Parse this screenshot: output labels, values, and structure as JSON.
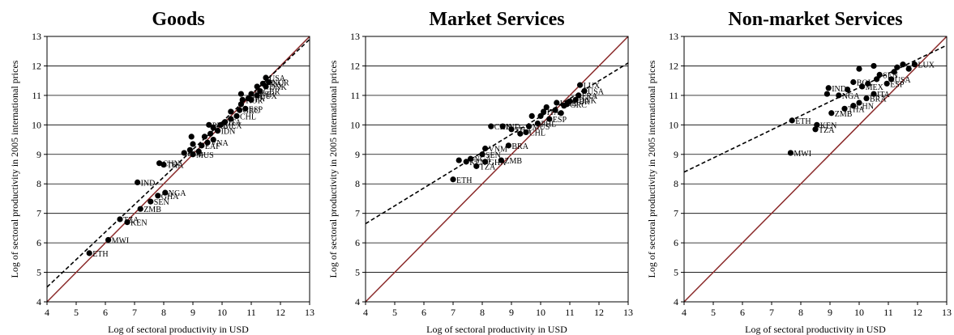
{
  "chart_data": [
    {
      "type": "scatter",
      "title": "Goods",
      "xlabel": "Log of sectoral productivity in USD",
      "ylabel": "Log of sectoral productivity in 2005 international prices",
      "xlim": [
        4,
        13
      ],
      "ylim": [
        4,
        13
      ],
      "xticks": [
        "4",
        "5",
        "6",
        "7",
        "8",
        "9",
        "10",
        "11",
        "12",
        "13"
      ],
      "yticks": [
        "4",
        "5",
        "6",
        "7",
        "8",
        "9",
        "10",
        "11",
        "12",
        "13"
      ],
      "grid": "horizontal",
      "fit_line": {
        "x": [
          4,
          13
        ],
        "y": [
          4.5,
          12.9
        ]
      },
      "identity_line": {
        "x": [
          4,
          13
        ],
        "y": [
          4,
          13
        ]
      },
      "points": [
        {
          "x": 5.45,
          "y": 5.65,
          "label": "ETH"
        },
        {
          "x": 6.1,
          "y": 6.1,
          "label": "MWI"
        },
        {
          "x": 6.75,
          "y": 6.7,
          "label": "KEN"
        },
        {
          "x": 6.5,
          "y": 6.8,
          "label": "TZA"
        },
        {
          "x": 7.2,
          "y": 7.15,
          "label": "ZMB"
        },
        {
          "x": 7.55,
          "y": 7.4,
          "label": "SEN"
        },
        {
          "x": 7.8,
          "y": 7.6,
          "label": "GHA"
        },
        {
          "x": 8.05,
          "y": 7.7,
          "label": "NGA"
        },
        {
          "x": 7.1,
          "y": 8.05,
          "label": "IND"
        },
        {
          "x": 7.85,
          "y": 8.7,
          "label": "CHN"
        },
        {
          "x": 8.0,
          "y": 8.65,
          "label": "THA"
        },
        {
          "x": 9.0,
          "y": 9.0,
          "label": "MUS"
        },
        {
          "x": 8.7,
          "y": 9.05,
          "label": "BOL"
        },
        {
          "x": 9.2,
          "y": 9.1,
          "label": ""
        },
        {
          "x": 8.9,
          "y": 9.15,
          "label": ""
        },
        {
          "x": 9.3,
          "y": 9.3,
          "label": "EAF"
        },
        {
          "x": 9.5,
          "y": 9.4,
          "label": "VNA"
        },
        {
          "x": 9.0,
          "y": 9.35,
          "label": ""
        },
        {
          "x": 9.7,
          "y": 9.5,
          "label": ""
        },
        {
          "x": 8.95,
          "y": 9.6,
          "label": ""
        },
        {
          "x": 9.4,
          "y": 9.6,
          "label": ""
        },
        {
          "x": 9.6,
          "y": 9.7,
          "label": ""
        },
        {
          "x": 9.85,
          "y": 9.8,
          "label": "IDN"
        },
        {
          "x": 9.7,
          "y": 9.9,
          "label": ""
        },
        {
          "x": 9.55,
          "y": 10.0,
          "label": "PHL"
        },
        {
          "x": 9.95,
          "y": 10.0,
          "label": "MEX"
        },
        {
          "x": 10.1,
          "y": 10.1,
          "label": "ITA"
        },
        {
          "x": 10.3,
          "y": 10.2,
          "label": ""
        },
        {
          "x": 10.5,
          "y": 10.3,
          "label": "CHL"
        },
        {
          "x": 10.3,
          "y": 10.45,
          "label": ""
        },
        {
          "x": 10.6,
          "y": 10.5,
          "label": "GRC"
        },
        {
          "x": 10.8,
          "y": 10.55,
          "label": "ESP"
        },
        {
          "x": 10.65,
          "y": 10.7,
          "label": ""
        },
        {
          "x": 10.7,
          "y": 10.85,
          "label": "KOR"
        },
        {
          "x": 10.9,
          "y": 10.9,
          "label": "JPN"
        },
        {
          "x": 11.0,
          "y": 10.85,
          "label": ""
        },
        {
          "x": 10.65,
          "y": 11.05,
          "label": ""
        },
        {
          "x": 11.0,
          "y": 11.05,
          "label": "SWE"
        },
        {
          "x": 11.2,
          "y": 11.0,
          "label": "LUX"
        },
        {
          "x": 11.3,
          "y": 11.15,
          "label": "GBR"
        },
        {
          "x": 11.5,
          "y": 11.3,
          "label": "DNK"
        },
        {
          "x": 11.2,
          "y": 11.3,
          "label": ""
        },
        {
          "x": 11.4,
          "y": 11.4,
          "label": "FRA"
        },
        {
          "x": 11.6,
          "y": 11.45,
          "label": "NOR"
        },
        {
          "x": 11.5,
          "y": 11.6,
          "label": "USA"
        }
      ]
    },
    {
      "type": "scatter",
      "title": "Market Services",
      "xlabel": "Log of sectoral productivity in USD",
      "ylabel": "Log of sectoral productivity in 2005 international prices",
      "xlim": [
        4,
        13
      ],
      "ylim": [
        4,
        13
      ],
      "xticks": [
        "4",
        "5",
        "6",
        "7",
        "8",
        "9",
        "10",
        "11",
        "12",
        "13"
      ],
      "yticks": [
        "4",
        "5",
        "6",
        "7",
        "8",
        "9",
        "10",
        "11",
        "12",
        "13"
      ],
      "grid": "horizontal",
      "fit_line": {
        "x": [
          4,
          13
        ],
        "y": [
          6.65,
          12.1
        ]
      },
      "identity_line": {
        "x": [
          4,
          13
        ],
        "y": [
          4,
          13
        ]
      },
      "points": [
        {
          "x": 7.0,
          "y": 8.15,
          "label": "ETH"
        },
        {
          "x": 7.2,
          "y": 8.8,
          "label": ""
        },
        {
          "x": 7.45,
          "y": 8.75,
          "label": "KEN"
        },
        {
          "x": 7.6,
          "y": 8.85,
          "label": "NGA"
        },
        {
          "x": 7.8,
          "y": 8.6,
          "label": "TZA"
        },
        {
          "x": 8.1,
          "y": 8.75,
          "label": "GHA"
        },
        {
          "x": 8.0,
          "y": 9.0,
          "label": "SEN"
        },
        {
          "x": 8.1,
          "y": 9.2,
          "label": "VNM"
        },
        {
          "x": 8.65,
          "y": 8.8,
          "label": "ZMB"
        },
        {
          "x": 8.9,
          "y": 9.3,
          "label": "BRA"
        },
        {
          "x": 8.3,
          "y": 9.95,
          "label": "CHN"
        },
        {
          "x": 8.7,
          "y": 9.95,
          "label": "IND"
        },
        {
          "x": 9.0,
          "y": 9.85,
          "label": "THA"
        },
        {
          "x": 9.3,
          "y": 9.7,
          "label": ""
        },
        {
          "x": 9.5,
          "y": 9.75,
          "label": "CHL"
        },
        {
          "x": 9.6,
          "y": 9.95,
          "label": "MUS"
        },
        {
          "x": 9.7,
          "y": 10.3,
          "label": ""
        },
        {
          "x": 9.9,
          "y": 10.05,
          "label": "PHL"
        },
        {
          "x": 10.0,
          "y": 10.3,
          "label": ""
        },
        {
          "x": 10.1,
          "y": 10.45,
          "label": "ITA"
        },
        {
          "x": 10.2,
          "y": 10.6,
          "label": ""
        },
        {
          "x": 10.3,
          "y": 10.2,
          "label": "ESP"
        },
        {
          "x": 10.5,
          "y": 10.5,
          "label": ""
        },
        {
          "x": 10.55,
          "y": 10.75,
          "label": "KOR"
        },
        {
          "x": 10.7,
          "y": 10.4,
          "label": ""
        },
        {
          "x": 10.8,
          "y": 10.65,
          "label": ""
        },
        {
          "x": 10.9,
          "y": 10.7,
          "label": "GRC"
        },
        {
          "x": 11.0,
          "y": 10.8,
          "label": "GBR"
        },
        {
          "x": 11.2,
          "y": 10.85,
          "label": "DNK"
        },
        {
          "x": 11.3,
          "y": 11.0,
          "label": "FRA"
        },
        {
          "x": 11.5,
          "y": 11.15,
          "label": "USA"
        },
        {
          "x": 11.35,
          "y": 11.35,
          "label": "LUX"
        }
      ]
    },
    {
      "type": "scatter",
      "title": "Non-market Services",
      "xlabel": "Log of sectoral productivity in USD",
      "ylabel": "Log of sectoral productivity in 2005 international prices",
      "xlim": [
        4,
        13
      ],
      "ylim": [
        4,
        13
      ],
      "xticks": [
        "4",
        "5",
        "6",
        "7",
        "8",
        "9",
        "10",
        "11",
        "12",
        "13"
      ],
      "yticks": [
        "4",
        "5",
        "6",
        "7",
        "8",
        "9",
        "10",
        "11",
        "12",
        "13"
      ],
      "grid": "horizontal",
      "fit_line": {
        "x": [
          4,
          13
        ],
        "y": [
          8.4,
          12.7
        ]
      },
      "identity_line": {
        "x": [
          4,
          13
        ],
        "y": [
          4,
          13
        ]
      },
      "points": [
        {
          "x": 7.65,
          "y": 9.05,
          "label": "MWI"
        },
        {
          "x": 7.7,
          "y": 10.15,
          "label": "ETH"
        },
        {
          "x": 8.5,
          "y": 9.85,
          "label": "TZA"
        },
        {
          "x": 8.55,
          "y": 10.0,
          "label": "KEN"
        },
        {
          "x": 9.05,
          "y": 10.4,
          "label": "ZMB"
        },
        {
          "x": 9.5,
          "y": 10.55,
          "label": "THA"
        },
        {
          "x": 9.8,
          "y": 10.65,
          "label": "CHN"
        },
        {
          "x": 10.0,
          "y": 10.75,
          "label": ""
        },
        {
          "x": 10.25,
          "y": 10.9,
          "label": "BRA"
        },
        {
          "x": 10.5,
          "y": 11.05,
          "label": "ITA"
        },
        {
          "x": 8.9,
          "y": 11.05,
          "label": ""
        },
        {
          "x": 8.95,
          "y": 11.25,
          "label": "IND"
        },
        {
          "x": 9.3,
          "y": 11.0,
          "label": "NGA"
        },
        {
          "x": 9.6,
          "y": 11.2,
          "label": ""
        },
        {
          "x": 9.8,
          "y": 11.45,
          "label": "BOL"
        },
        {
          "x": 10.1,
          "y": 11.3,
          "label": "MEX"
        },
        {
          "x": 10.3,
          "y": 11.4,
          "label": ""
        },
        {
          "x": 10.6,
          "y": 11.55,
          "label": ""
        },
        {
          "x": 10.7,
          "y": 11.7,
          "label": "SEN"
        },
        {
          "x": 10.95,
          "y": 11.4,
          "label": "ESP"
        },
        {
          "x": 11.1,
          "y": 11.55,
          "label": "USA"
        },
        {
          "x": 10.0,
          "y": 11.9,
          "label": ""
        },
        {
          "x": 10.5,
          "y": 12.0,
          "label": ""
        },
        {
          "x": 11.2,
          "y": 11.8,
          "label": ""
        },
        {
          "x": 11.3,
          "y": 11.95,
          "label": ""
        },
        {
          "x": 11.5,
          "y": 12.05,
          "label": ""
        },
        {
          "x": 11.7,
          "y": 11.9,
          "label": ""
        },
        {
          "x": 11.9,
          "y": 12.05,
          "label": "LUX"
        }
      ]
    }
  ]
}
